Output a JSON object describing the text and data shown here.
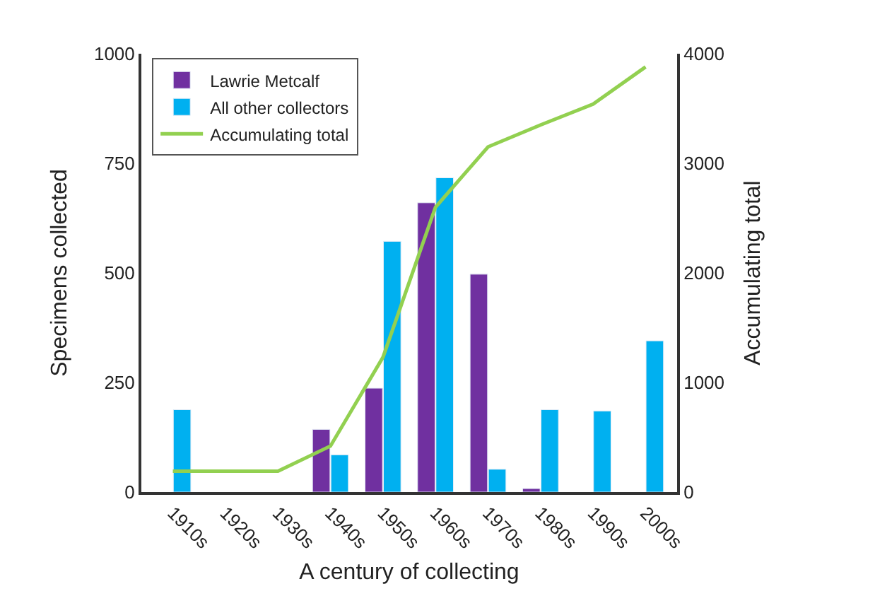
{
  "chart_data": {
    "type": "bar",
    "categories": [
      "1910s",
      "1920s",
      "1930s",
      "1940s",
      "1950s",
      "1960s",
      "1970s",
      "1980s",
      "1990s",
      "2000s"
    ],
    "series": [
      {
        "name": "Lawrie Metcalf",
        "color": "#7030a0",
        "values": [
          null,
          null,
          null,
          143,
          237,
          660,
          497,
          8,
          null,
          null
        ]
      },
      {
        "name": "All other collectors",
        "color": "#00b0f0",
        "values": [
          188,
          null,
          null,
          85,
          572,
          717,
          52,
          188,
          185,
          345
        ]
      },
      {
        "name": "Accumulating total",
        "color": "#92d050",
        "type": "line",
        "axis": "y2",
        "values": [
          190,
          190,
          190,
          420,
          1230,
          2600,
          3150,
          3350,
          3540,
          3880
        ]
      }
    ],
    "xlabel": "A century of collecting",
    "ylabel": "Specimens collected",
    "y2label": "Accumulating total",
    "ylim": [
      0,
      1000
    ],
    "yticks": [
      0,
      250,
      500,
      750,
      1000
    ],
    "y2lim": [
      0,
      4000
    ],
    "y2ticks": [
      0,
      1000,
      2000,
      3000,
      4000
    ],
    "legend": "top left",
    "marker": "none",
    "line_style": "solid"
  }
}
